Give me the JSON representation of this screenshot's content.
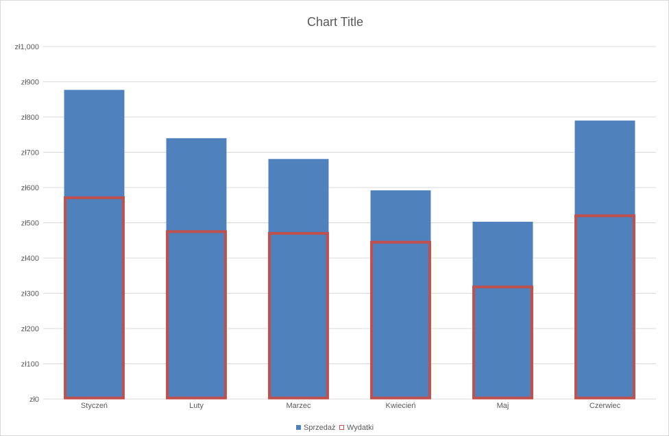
{
  "chart_data": {
    "type": "bar",
    "title": "Chart Title",
    "xlabel": "",
    "ylabel": "",
    "categories": [
      "Styczeń",
      "Luty",
      "Marzec",
      "Kwiecień",
      "Maj",
      "Czerwiec"
    ],
    "ylim": [
      0,
      1000
    ],
    "yticks": [
      "zł0",
      "zł100",
      "zł200",
      "zł300",
      "zł400",
      "zł500",
      "zł600",
      "zł700",
      "zł800",
      "zł900",
      "zł1,000"
    ],
    "grid": true,
    "legend_position": "bottom",
    "overlapping": true,
    "series": [
      {
        "name": "Sprzedaż",
        "values": [
          877,
          740,
          681,
          592,
          503,
          790
        ],
        "fill": "#4f81bd",
        "style": "filled"
      },
      {
        "name": "Wydatki",
        "values": [
          571,
          475,
          470,
          445,
          318,
          520
        ],
        "stroke": "#c0504d",
        "style": "outline"
      }
    ]
  }
}
